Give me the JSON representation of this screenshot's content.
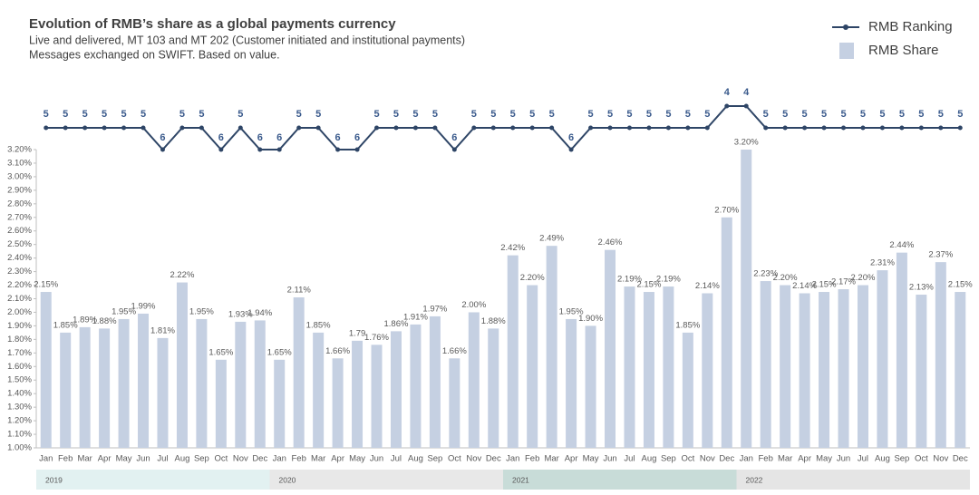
{
  "chart_data": {
    "type": "bar",
    "title": "Evolution of RMB’s share as a global payments currency",
    "subtitle": [
      "Live and delivered, MT 103 and MT 202 (Customer initiated and institutional payments)",
      "Messages exchanged on SWIFT. Based on value."
    ],
    "categories": [
      "Jan",
      "Feb",
      "Mar",
      "Apr",
      "May",
      "Jun",
      "Jul",
      "Aug",
      "Sep",
      "Oct",
      "Nov",
      "Dec",
      "Jan",
      "Feb",
      "Mar",
      "Apr",
      "May",
      "Jun",
      "Jul",
      "Aug",
      "Sep",
      "Oct",
      "Nov",
      "Dec",
      "Jan",
      "Feb",
      "Mar",
      "Apr",
      "May",
      "Jun",
      "Jul",
      "Aug",
      "Sep",
      "Oct",
      "Nov",
      "Dec",
      "Jan",
      "Feb",
      "Mar",
      "Apr",
      "May",
      "Jun",
      "Jul",
      "Aug",
      "Sep",
      "Oct",
      "Nov",
      "Dec"
    ],
    "year_groups": [
      "2019",
      "2020",
      "2021",
      "2022"
    ],
    "series": [
      {
        "name": "RMB Ranking",
        "type": "line",
        "axis": "y2",
        "color": "#2e4566",
        "values": [
          5,
          5,
          5,
          5,
          5,
          5,
          6,
          5,
          5,
          6,
          5,
          6,
          6,
          5,
          5,
          6,
          6,
          5,
          5,
          5,
          5,
          6,
          5,
          5,
          5,
          5,
          5,
          6,
          5,
          5,
          5,
          5,
          5,
          5,
          5,
          4,
          4,
          5,
          5,
          5,
          5,
          5,
          5,
          5,
          5,
          5,
          5,
          5
        ]
      },
      {
        "name": "RMB Share",
        "type": "bar",
        "color": "#c5d0e2",
        "values": [
          2.15,
          1.85,
          1.89,
          1.88,
          1.95,
          1.99,
          1.81,
          2.22,
          1.95,
          1.65,
          1.93,
          1.94,
          1.65,
          2.11,
          1.85,
          1.66,
          1.79,
          1.76,
          1.86,
          1.91,
          1.97,
          1.66,
          2.0,
          1.88,
          2.42,
          2.2,
          2.49,
          1.95,
          1.9,
          2.46,
          2.19,
          2.15,
          2.19,
          1.85,
          2.14,
          2.7,
          3.2,
          2.23,
          2.2,
          2.14,
          2.15,
          2.17,
          2.2,
          2.31,
          2.44,
          2.13,
          2.37,
          2.15
        ],
        "value_labels": [
          "2.15%",
          "1.85%",
          "1.89%",
          "1.88%",
          "1.95%",
          "1.99%",
          "1.81%",
          "2.22%",
          "1.95%",
          "1.65%",
          "1.93%",
          "1.94%",
          "1.65%",
          "2.11%",
          "1.85%",
          "1.66%",
          "1.79",
          "1.76%",
          "1.86%",
          "1.91%",
          "1.97%",
          "1.66%",
          "2.00%",
          "1.88%",
          "2.42%",
          "2.20%",
          "2.49%",
          "1.95%",
          "1.90%",
          "2.46%",
          "2.19%",
          "2.15%",
          "2.19%",
          "1.85%",
          "2.14%",
          "2.70%",
          "3.20%",
          "2.23%",
          "2.20%",
          "2.14%",
          "2.15%",
          "2.17%",
          "2.20%",
          "2.31%",
          "2.44%",
          "2.13%",
          "2.37%",
          "2.15%"
        ]
      }
    ],
    "ylim": [
      1.0,
      3.2
    ],
    "yticks": [
      {
        "value": 1.0,
        "label": "1.00%"
      },
      {
        "value": 1.1,
        "label": "1.10%"
      },
      {
        "value": 1.2,
        "label": "1.20%"
      },
      {
        "value": 1.3,
        "label": "1.30%"
      },
      {
        "value": 1.4,
        "label": "1.40%"
      },
      {
        "value": 1.5,
        "label": "1.50%"
      },
      {
        "value": 1.6,
        "label": "1.60%"
      },
      {
        "value": 1.7,
        "label": "1.70%"
      },
      {
        "value": 1.8,
        "label": "1.80%"
      },
      {
        "value": 1.9,
        "label": "1.90%"
      },
      {
        "value": 2.0,
        "label": "2.00%"
      },
      {
        "value": 2.1,
        "label": "2.10%"
      },
      {
        "value": 2.2,
        "label": "2.20%"
      },
      {
        "value": 2.3,
        "label": "2.30%"
      },
      {
        "value": 2.4,
        "label": "2.40%"
      },
      {
        "value": 2.5,
        "label": "2.50%"
      },
      {
        "value": 2.6,
        "label": "2.60%"
      },
      {
        "value": 2.7,
        "label": "2.70%"
      },
      {
        "value": 2.8,
        "label": "2.80%"
      },
      {
        "value": 2.9,
        "label": "2.90%"
      },
      {
        "value": 3.0,
        "label": "3.00%"
      },
      {
        "value": 3.1,
        "label": "3.10%"
      },
      {
        "value": 3.2,
        "label": "3.20%"
      }
    ],
    "y2lim": [
      6,
      4
    ],
    "grid": false
  }
}
